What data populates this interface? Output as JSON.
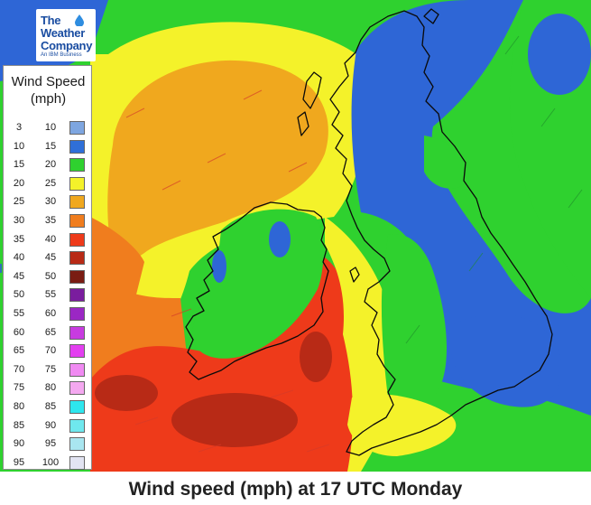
{
  "logo": {
    "line1": "The",
    "line2": "Weather",
    "line3": "Company",
    "sub": "An IBM Business"
  },
  "legend": {
    "title_line1": "Wind Speed",
    "title_line2": "(mph)",
    "rows": [
      {
        "min": "3",
        "max": "10",
        "color": "#7ea6e0"
      },
      {
        "min": "10",
        "max": "15",
        "color": "#2f6fd8"
      },
      {
        "min": "15",
        "max": "20",
        "color": "#2fd12f"
      },
      {
        "min": "20",
        "max": "25",
        "color": "#f4f22a"
      },
      {
        "min": "25",
        "max": "30",
        "color": "#f0a81e"
      },
      {
        "min": "30",
        "max": "35",
        "color": "#f07d1e"
      },
      {
        "min": "35",
        "max": "40",
        "color": "#ee3a1a"
      },
      {
        "min": "40",
        "max": "45",
        "color": "#b82a16"
      },
      {
        "min": "45",
        "max": "50",
        "color": "#7a1c12"
      },
      {
        "min": "50",
        "max": "55",
        "color": "#7a1d9e"
      },
      {
        "min": "55",
        "max": "60",
        "color": "#9b27c4"
      },
      {
        "min": "60",
        "max": "65",
        "color": "#c83be0"
      },
      {
        "min": "65",
        "max": "70",
        "color": "#e33ff0"
      },
      {
        "min": "70",
        "max": "75",
        "color": "#f08af2"
      },
      {
        "min": "75",
        "max": "80",
        "color": "#f4a8f0"
      },
      {
        "min": "80",
        "max": "85",
        "color": "#2ee6ee"
      },
      {
        "min": "85",
        "max": "90",
        "color": "#6fe8ee"
      },
      {
        "min": "90",
        "max": "95",
        "color": "#a9e6f0"
      },
      {
        "min": "95",
        "max": "100",
        "color": "#e2e4f2"
      }
    ]
  },
  "caption": "Wind speed (mph) at 17 UTC Monday",
  "map_colors": {
    "sea_blue": "#2e66d6",
    "green": "#2fd12f",
    "yellow": "#f4f22a",
    "light_orange": "#f0a81e",
    "orange": "#f07d1e",
    "red": "#ee3a1a",
    "dark_red": "#b82a16",
    "coast": "#0a0a0a"
  }
}
